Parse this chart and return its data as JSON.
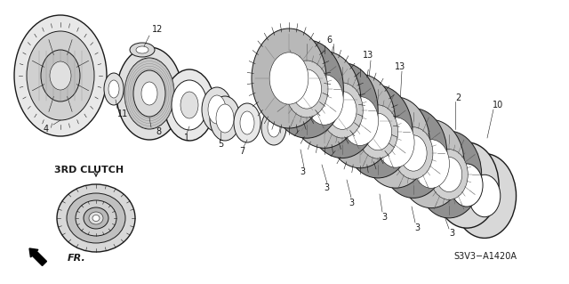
{
  "background_color": "#ffffff",
  "fig_width": 6.4,
  "fig_height": 3.19,
  "dpi": 100,
  "diagram_code": "S3V3−A1420A",
  "label_3rd_clutch": "3RD CLUTCH",
  "label_fr": "FR.",
  "line_color": "#1a1a1a",
  "text_color": "#1a1a1a",
  "gray_dark": "#555555",
  "gray_mid": "#888888",
  "gray_light": "#cccccc",
  "gray_fill": "#d8d8d8",
  "white": "#ffffff"
}
